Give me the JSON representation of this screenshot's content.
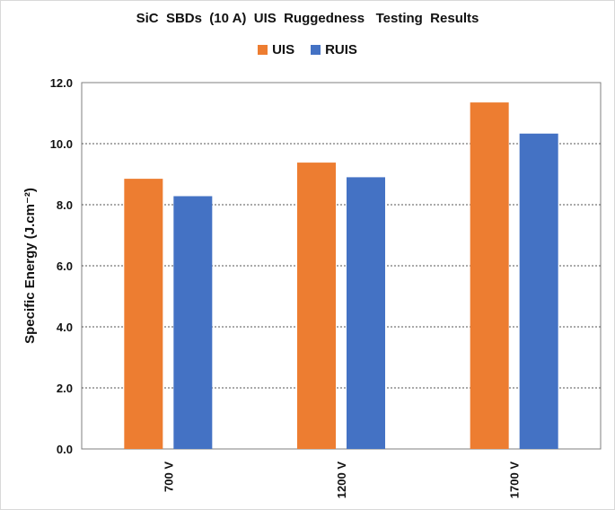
{
  "chart_data": {
    "type": "bar",
    "title": "SiC  SBDs  (10 A)  UIS  Ruggedness   Testing  Results",
    "xlabel": "",
    "ylabel": "Specific Energy (J.cm⁻²)",
    "categories": [
      "700 V",
      "1200 V",
      "1700 V"
    ],
    "series": [
      {
        "name": "UIS",
        "values": [
          8.85,
          9.38,
          11.35
        ],
        "color": "#ED7D31"
      },
      {
        "name": "RUIS",
        "values": [
          8.28,
          8.9,
          10.33
        ],
        "color": "#4472C4"
      }
    ],
    "ylim": [
      0,
      12
    ],
    "yticks": [
      "0.0",
      "2.0",
      "4.0",
      "6.0",
      "8.0",
      "10.0",
      "12.0"
    ],
    "grid": "horizontal dashed",
    "legend_position": "top"
  }
}
